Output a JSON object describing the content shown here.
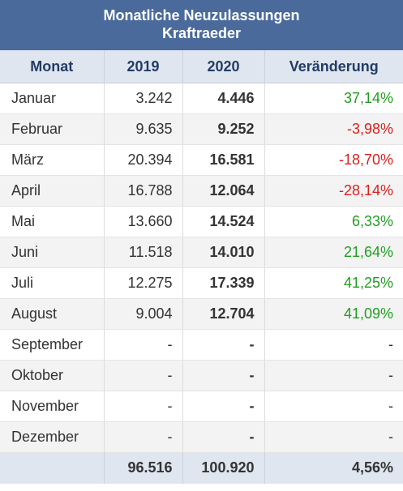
{
  "title": {
    "line1": "Monatliche Neuzulassungen",
    "line2": "Kraftraeder"
  },
  "headers": [
    "Monat",
    "2019",
    "2020",
    "Veränderung"
  ],
  "rows": [
    {
      "monat": "Januar",
      "y2019": "3.242",
      "y2020": "4.446",
      "change": "37,14%",
      "trend": "pos"
    },
    {
      "monat": "Februar",
      "y2019": "9.635",
      "y2020": "9.252",
      "change": "-3,98%",
      "trend": "neg"
    },
    {
      "monat": "März",
      "y2019": "20.394",
      "y2020": "16.581",
      "change": "-18,70%",
      "trend": "neg"
    },
    {
      "monat": "April",
      "y2019": "16.788",
      "y2020": "12.064",
      "change": "-28,14%",
      "trend": "neg"
    },
    {
      "monat": "Mai",
      "y2019": "13.660",
      "y2020": "14.524",
      "change": "6,33%",
      "trend": "pos"
    },
    {
      "monat": "Juni",
      "y2019": "11.518",
      "y2020": "14.010",
      "change": "21,64%",
      "trend": "pos"
    },
    {
      "monat": "Juli",
      "y2019": "12.275",
      "y2020": "17.339",
      "change": "41,25%",
      "trend": "pos"
    },
    {
      "monat": "August",
      "y2019": "9.004",
      "y2020": "12.704",
      "change": "41,09%",
      "trend": "pos"
    },
    {
      "monat": "September",
      "y2019": "-",
      "y2020": "-",
      "change": "-",
      "trend": "none"
    },
    {
      "monat": "Oktober",
      "y2019": "-",
      "y2020": "-",
      "change": "-",
      "trend": "none"
    },
    {
      "monat": "November",
      "y2019": "-",
      "y2020": "-",
      "change": "-",
      "trend": "none"
    },
    {
      "monat": "Dezember",
      "y2019": "-",
      "y2020": "-",
      "change": "-",
      "trend": "none"
    }
  ],
  "totals": {
    "label": "",
    "y2019": "96.516",
    "y2020": "100.920",
    "change": "4,56%"
  },
  "colors": {
    "header_bg": "#4a6a9c",
    "subheader_bg": "#dfe6ef",
    "header_text": "#233c66",
    "positive": "#1f9d1f",
    "negative": "#d9201e"
  }
}
